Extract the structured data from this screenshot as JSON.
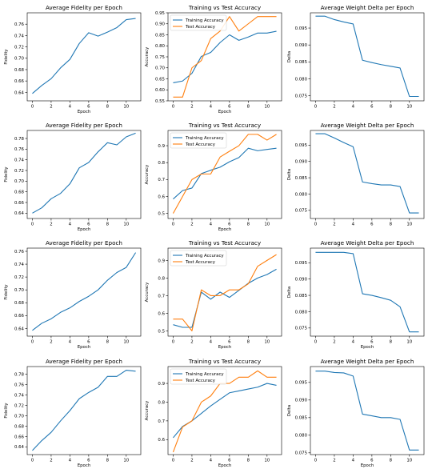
{
  "chart_data": [
    {
      "type": "line",
      "title": "Average Fidelity per Epoch",
      "xlabel": "Epoch",
      "ylabel": "Fidelity",
      "xlim": [
        -0.55,
        11.55
      ],
      "ylim": [
        0.625,
        0.78
      ],
      "xticks": [
        0,
        2,
        4,
        6,
        8,
        10
      ],
      "yticks": [
        0.64,
        0.66,
        0.68,
        0.7,
        0.72,
        0.74,
        0.76
      ],
      "legend": "",
      "x": [
        0,
        1,
        2,
        3,
        4,
        5,
        6,
        7,
        8,
        9,
        10,
        11
      ],
      "series": [
        {
          "color": "#1f77b4",
          "values": [
            0.638,
            0.652,
            0.664,
            0.683,
            0.698,
            0.726,
            0.745,
            0.739,
            0.746,
            0.754,
            0.768,
            0.77
          ]
        }
      ]
    },
    {
      "type": "line",
      "title": "Training vs Test Accuracy",
      "xlabel": "Epoch",
      "ylabel": "Accuracy",
      "xlim": [
        -0.55,
        11.55
      ],
      "ylim": [
        0.55,
        0.95
      ],
      "xticks": [
        0,
        2,
        4,
        6,
        8,
        10
      ],
      "yticks": [
        0.55,
        0.6,
        0.65,
        0.7,
        0.75,
        0.8,
        0.85,
        0.9,
        0.95
      ],
      "legend": "upper-left",
      "x": [
        0,
        1,
        2,
        3,
        4,
        5,
        6,
        7,
        8,
        9,
        10,
        11
      ],
      "series": [
        {
          "name": "Training Accuracy",
          "color": "#1f77b4",
          "values": [
            0.632,
            0.64,
            0.675,
            0.752,
            0.77,
            0.815,
            0.85,
            0.825,
            0.84,
            0.858,
            0.858,
            0.866
          ]
        },
        {
          "name": "Test Accuracy",
          "color": "#ff7f0e",
          "values": [
            0.567,
            0.567,
            0.7,
            0.733,
            0.833,
            0.867,
            0.933,
            0.867,
            0.9,
            0.933,
            0.933,
            0.933
          ]
        }
      ]
    },
    {
      "type": "line",
      "title": "Average Weight Delta per Epoch",
      "xlabel": "",
      "ylabel": "Delta",
      "xlim": [
        -0.55,
        11.55
      ],
      "ylim": [
        0.0735,
        0.0995
      ],
      "xticks": [
        0,
        2,
        4,
        6,
        8,
        10
      ],
      "yticks": [
        0.075,
        0.08,
        0.085,
        0.09,
        0.095
      ],
      "legend": "",
      "x": [
        0,
        1,
        2,
        3,
        4,
        5,
        6,
        7,
        8,
        9,
        10,
        11
      ],
      "series": [
        {
          "color": "#1f77b4",
          "values": [
            0.0985,
            0.0985,
            0.0975,
            0.0968,
            0.0962,
            0.0855,
            0.0848,
            0.0842,
            0.0837,
            0.0832,
            0.0748,
            0.0748
          ]
        }
      ]
    },
    {
      "type": "line",
      "title": "Average Fidelity per Epoch",
      "xlabel": "Epoch",
      "ylabel": "Fidelity",
      "xlim": [
        -0.55,
        11.55
      ],
      "ylim": [
        0.63,
        0.795
      ],
      "xticks": [
        0,
        2,
        4,
        6,
        8,
        10
      ],
      "yticks": [
        0.64,
        0.66,
        0.68,
        0.7,
        0.72,
        0.74,
        0.76,
        0.78
      ],
      "legend": "",
      "x": [
        0,
        1,
        2,
        3,
        4,
        5,
        6,
        7,
        8,
        9,
        10,
        11
      ],
      "series": [
        {
          "color": "#1f77b4",
          "values": [
            0.64,
            0.65,
            0.667,
            0.677,
            0.695,
            0.725,
            0.735,
            0.755,
            0.772,
            0.768,
            0.783,
            0.79
          ]
        }
      ]
    },
    {
      "type": "line",
      "title": "Training vs Test Accuracy",
      "xlabel": "Epoch",
      "ylabel": "Accuracy",
      "xlim": [
        -0.55,
        11.55
      ],
      "ylim": [
        0.47,
        0.99
      ],
      "xticks": [
        0,
        2,
        4,
        6,
        8,
        10
      ],
      "yticks": [
        0.5,
        0.6,
        0.7,
        0.8,
        0.9
      ],
      "legend": "upper-left",
      "x": [
        0,
        1,
        2,
        3,
        4,
        5,
        6,
        7,
        8,
        9,
        10,
        11
      ],
      "series": [
        {
          "name": "Training Accuracy",
          "color": "#1f77b4",
          "values": [
            0.585,
            0.635,
            0.65,
            0.735,
            0.755,
            0.773,
            0.805,
            0.83,
            0.885,
            0.87,
            0.878,
            0.885
          ]
        },
        {
          "name": "Test Accuracy",
          "color": "#ff7f0e",
          "values": [
            0.5,
            0.6,
            0.7,
            0.733,
            0.733,
            0.833,
            0.867,
            0.9,
            0.967,
            0.967,
            0.933,
            0.967
          ]
        }
      ]
    },
    {
      "type": "line",
      "title": "Average Weight Delta per Epoch",
      "xlabel": "",
      "ylabel": "Delta",
      "xlim": [
        -0.55,
        11.55
      ],
      "ylim": [
        0.0725,
        0.0995
      ],
      "xticks": [
        0,
        2,
        4,
        6,
        8,
        10
      ],
      "yticks": [
        0.075,
        0.08,
        0.085,
        0.09,
        0.095
      ],
      "legend": "",
      "x": [
        0,
        1,
        2,
        3,
        4,
        5,
        6,
        7,
        8,
        9,
        10,
        11
      ],
      "series": [
        {
          "color": "#1f77b4",
          "values": [
            0.0985,
            0.0985,
            0.0972,
            0.0958,
            0.0945,
            0.0837,
            0.0832,
            0.0828,
            0.0828,
            0.0823,
            0.0742,
            0.0742
          ]
        }
      ]
    },
    {
      "type": "line",
      "title": "Average Fidelity per Epoch",
      "xlabel": "Epoch",
      "ylabel": "Fidelity",
      "xlim": [
        -0.55,
        11.55
      ],
      "ylim": [
        0.628,
        0.765
      ],
      "xticks": [
        0,
        2,
        4,
        6,
        8,
        10
      ],
      "yticks": [
        0.64,
        0.66,
        0.68,
        0.7,
        0.72,
        0.74,
        0.76
      ],
      "legend": "",
      "x": [
        0,
        1,
        2,
        3,
        4,
        5,
        6,
        7,
        8,
        9,
        10,
        11
      ],
      "series": [
        {
          "color": "#1f77b4",
          "values": [
            0.637,
            0.648,
            0.655,
            0.665,
            0.672,
            0.682,
            0.69,
            0.7,
            0.715,
            0.727,
            0.735,
            0.758
          ]
        }
      ]
    },
    {
      "type": "line",
      "title": "Training vs Test Accuracy",
      "xlabel": "Epoch",
      "ylabel": "Accuracy",
      "xlim": [
        -0.55,
        11.55
      ],
      "ylim": [
        0.47,
        0.97
      ],
      "xticks": [
        0,
        2,
        4,
        6,
        8,
        10
      ],
      "yticks": [
        0.5,
        0.6,
        0.7,
        0.8,
        0.9
      ],
      "legend": "upper-left",
      "x": [
        0,
        1,
        2,
        3,
        4,
        5,
        6,
        7,
        8,
        9,
        10,
        11
      ],
      "series": [
        {
          "name": "Training Accuracy",
          "color": "#1f77b4",
          "values": [
            0.535,
            0.52,
            0.52,
            0.72,
            0.68,
            0.72,
            0.69,
            0.73,
            0.77,
            0.8,
            0.82,
            0.85
          ]
        },
        {
          "name": "Test Accuracy",
          "color": "#ff7f0e",
          "values": [
            0.567,
            0.567,
            0.5,
            0.733,
            0.7,
            0.7,
            0.733,
            0.733,
            0.767,
            0.867,
            0.9,
            0.933
          ]
        }
      ]
    },
    {
      "type": "line",
      "title": "Average Weight Delta per Epoch",
      "xlabel": "Epoch",
      "ylabel": "Delta",
      "xlim": [
        -0.55,
        11.55
      ],
      "ylim": [
        0.0725,
        0.0995
      ],
      "xticks": [
        0,
        2,
        4,
        6,
        8,
        10
      ],
      "yticks": [
        0.075,
        0.08,
        0.085,
        0.09,
        0.095
      ],
      "legend": "",
      "x": [
        0,
        1,
        2,
        3,
        4,
        5,
        6,
        7,
        8,
        9,
        10,
        11
      ],
      "series": [
        {
          "color": "#1f77b4",
          "values": [
            0.0982,
            0.0982,
            0.0982,
            0.0982,
            0.0978,
            0.0855,
            0.085,
            0.0843,
            0.0835,
            0.0815,
            0.0738,
            0.0738
          ]
        }
      ]
    },
    {
      "type": "line",
      "title": "Average Fidelity per Epoch",
      "xlabel": "Epoch",
      "ylabel": "Fidelity",
      "xlim": [
        -0.55,
        11.55
      ],
      "ylim": [
        0.625,
        0.795
      ],
      "xticks": [
        0,
        2,
        4,
        6,
        8,
        10
      ],
      "yticks": [
        0.64,
        0.66,
        0.68,
        0.7,
        0.72,
        0.74,
        0.76,
        0.78
      ],
      "legend": "",
      "x": [
        0,
        1,
        2,
        3,
        4,
        5,
        6,
        7,
        8,
        9,
        10,
        11
      ],
      "series": [
        {
          "color": "#1f77b4",
          "values": [
            0.633,
            0.652,
            0.668,
            0.69,
            0.71,
            0.733,
            0.745,
            0.755,
            0.776,
            0.776,
            0.788,
            0.786
          ]
        }
      ]
    },
    {
      "type": "line",
      "title": "Training vs Test Accuracy",
      "xlabel": "Epoch",
      "ylabel": "Accuracy",
      "xlim": [
        -0.55,
        11.55
      ],
      "ylim": [
        0.52,
        0.99
      ],
      "xticks": [
        0,
        2,
        4,
        6,
        8,
        10
      ],
      "yticks": [
        0.6,
        0.7,
        0.8,
        0.9
      ],
      "legend": "upper-left",
      "x": [
        0,
        1,
        2,
        3,
        4,
        5,
        6,
        7,
        8,
        9,
        10,
        11
      ],
      "series": [
        {
          "name": "Training Accuracy",
          "color": "#1f77b4",
          "values": [
            0.61,
            0.67,
            0.7,
            0.74,
            0.78,
            0.815,
            0.85,
            0.86,
            0.87,
            0.88,
            0.9,
            0.89
          ]
        },
        {
          "name": "Test Accuracy",
          "color": "#ff7f0e",
          "values": [
            0.533,
            0.667,
            0.7,
            0.8,
            0.833,
            0.9,
            0.9,
            0.933,
            0.933,
            0.967,
            0.933,
            0.933
          ]
        }
      ]
    },
    {
      "type": "line",
      "title": "Average Weight Delta per Epoch",
      "xlabel": "Epoch",
      "ylabel": "Delta",
      "xlim": [
        -0.55,
        11.55
      ],
      "ylim": [
        0.0745,
        0.0995
      ],
      "xticks": [
        0,
        2,
        4,
        6,
        8,
        10
      ],
      "yticks": [
        0.075,
        0.08,
        0.085,
        0.09,
        0.095
      ],
      "legend": "",
      "x": [
        0,
        1,
        2,
        3,
        4,
        5,
        6,
        7,
        8,
        9,
        10,
        11
      ],
      "series": [
        {
          "color": "#1f77b4",
          "values": [
            0.0982,
            0.0982,
            0.0978,
            0.0977,
            0.0968,
            0.086,
            0.0855,
            0.085,
            0.085,
            0.0845,
            0.0758,
            0.0758
          ]
        }
      ]
    }
  ]
}
